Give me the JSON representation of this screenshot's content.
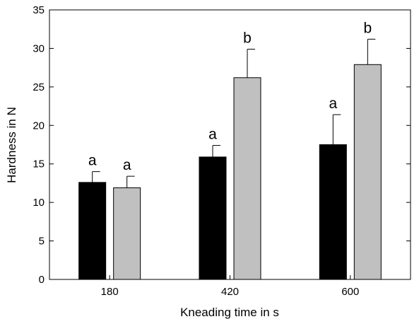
{
  "chart_data": {
    "type": "bar",
    "xlabel": "Kneading time in s",
    "ylabel": "Hardness in N",
    "ylim": [
      0,
      35
    ],
    "yticks": [
      0,
      5,
      10,
      15,
      20,
      25,
      30,
      35
    ],
    "categories": [
      "180",
      "420",
      "600"
    ],
    "grid": false,
    "legend": "none",
    "series": [
      {
        "color": "#000000",
        "values": [
          12.6,
          15.9,
          17.5
        ],
        "errors": [
          1.4,
          1.5,
          3.9
        ],
        "letters": [
          "a",
          "a",
          "a"
        ]
      },
      {
        "color": "#c0c0c0",
        "values": [
          11.9,
          26.2,
          27.9
        ],
        "errors": [
          1.5,
          3.7,
          3.3
        ],
        "letters": [
          "a",
          "b",
          "b"
        ]
      }
    ]
  }
}
